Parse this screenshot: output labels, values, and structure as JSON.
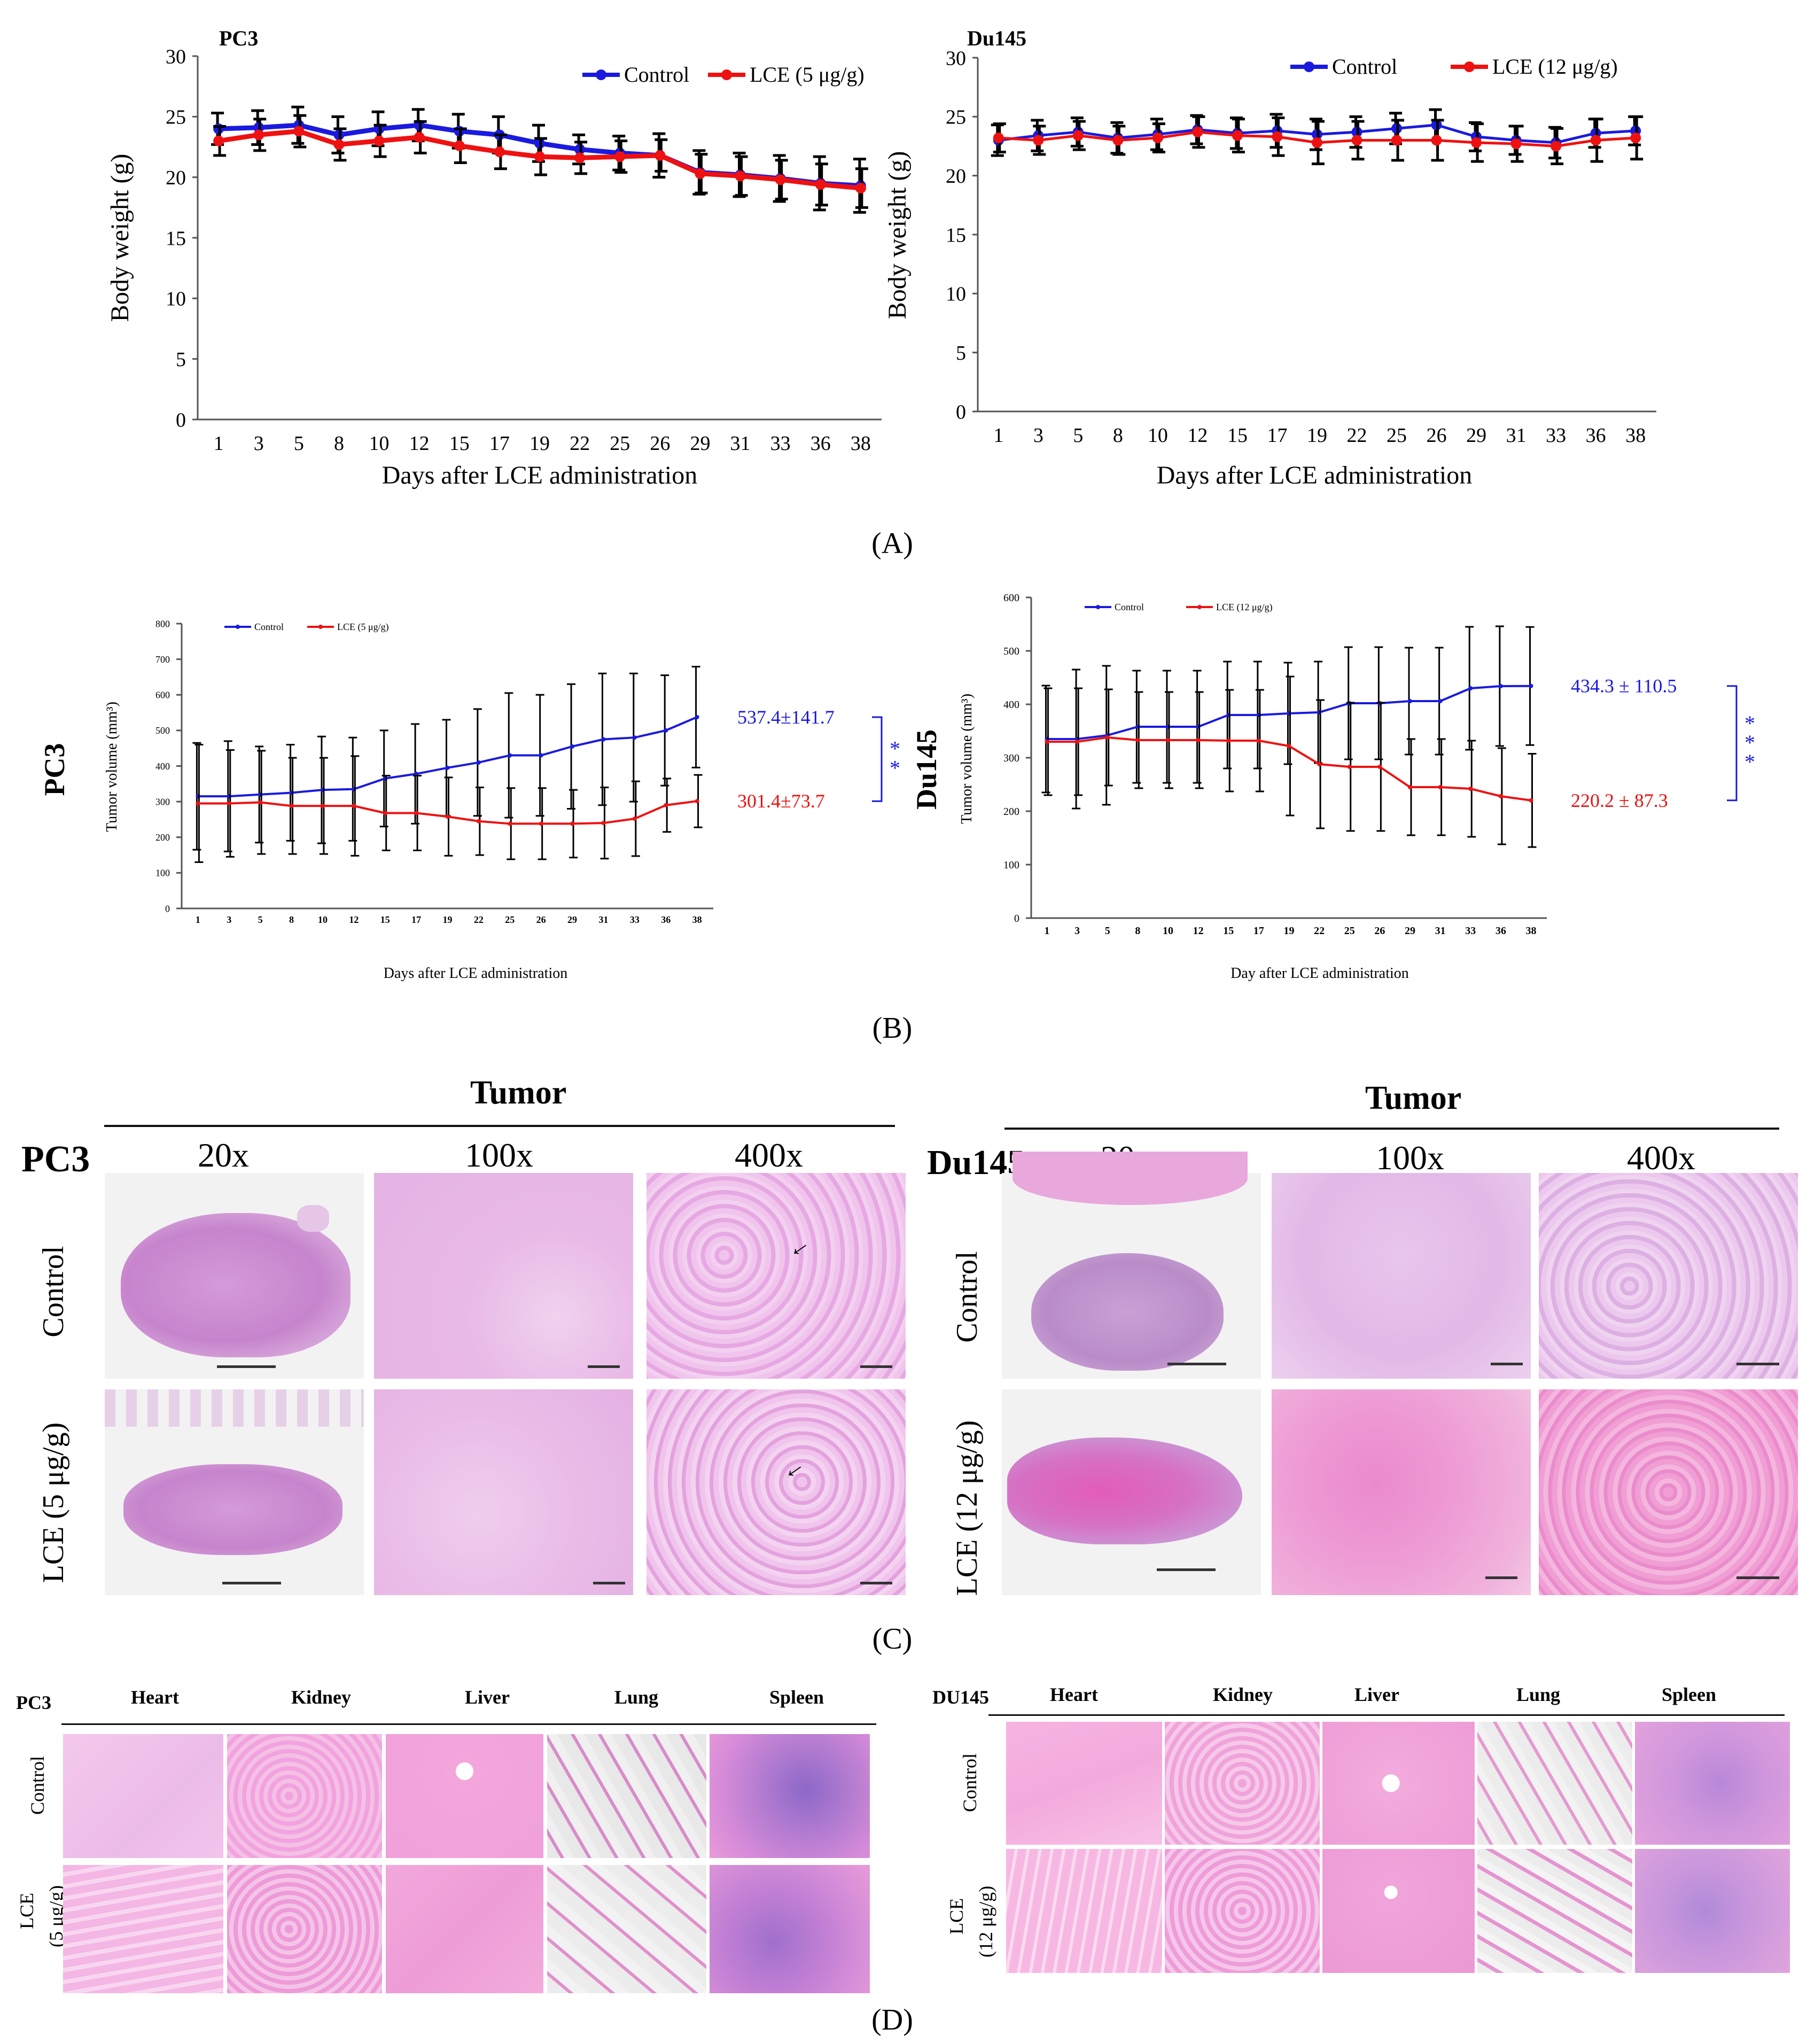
{
  "panel_labels": {
    "A": "(A)",
    "B": "(B)",
    "C": "(C)",
    "D": "(D)"
  },
  "colors": {
    "control": "#1a1adf",
    "lce": "#ee1111"
  },
  "chart_data": [
    {
      "id": "A-PC3",
      "type": "line",
      "title": "PC3",
      "xlabel": "Days after LCE administration",
      "ylabel": "Body weight (g)",
      "categories": [
        "1",
        "3",
        "5",
        "8",
        "10",
        "12",
        "15",
        "17",
        "19",
        "22",
        "25",
        "26",
        "29",
        "31",
        "33",
        "36",
        "38"
      ],
      "ylim": [
        0,
        30
      ],
      "yticks": [
        "0",
        "5",
        "10",
        "15",
        "20",
        "25",
        "30"
      ],
      "series": [
        {
          "name": "Control",
          "color": "#1a1adf",
          "values": [
            24.0,
            24.1,
            24.3,
            23.5,
            24.0,
            24.3,
            23.8,
            23.5,
            22.8,
            22.3,
            22.0,
            21.8,
            20.4,
            20.2,
            19.9,
            19.5,
            19.3
          ],
          "errors": [
            1.3,
            1.4,
            1.5,
            1.5,
            1.4,
            1.3,
            1.4,
            1.5,
            1.5,
            1.2,
            1.4,
            1.8,
            1.8,
            1.8,
            1.9,
            2.2,
            2.2
          ]
        },
        {
          "name": "LCE (5 μg/g)",
          "color": "#ee1111",
          "values": [
            23.0,
            23.5,
            23.8,
            22.7,
            23.0,
            23.3,
            22.6,
            22.1,
            21.7,
            21.6,
            21.7,
            21.8,
            20.3,
            20.1,
            19.8,
            19.4,
            19.1
          ],
          "errors": [
            1.2,
            1.3,
            1.3,
            1.3,
            1.3,
            1.3,
            1.4,
            1.4,
            1.5,
            1.3,
            1.3,
            1.3,
            1.6,
            1.6,
            1.6,
            1.7,
            1.6
          ]
        }
      ],
      "legend": [
        "Control",
        "LCE (5 μg/g)"
      ]
    },
    {
      "id": "A-Du145",
      "type": "line",
      "title": "Du145",
      "xlabel": "Days after LCE administration",
      "ylabel": "Body weight (g)",
      "categories": [
        "1",
        "3",
        "5",
        "8",
        "10",
        "12",
        "15",
        "17",
        "19",
        "22",
        "25",
        "26",
        "29",
        "31",
        "33",
        "36",
        "38"
      ],
      "ylim": [
        0,
        30
      ],
      "yticks": [
        "0",
        "5",
        "10",
        "15",
        "20",
        "25",
        "30"
      ],
      "series": [
        {
          "name": "Control",
          "color": "#1a1adf",
          "values": [
            23.0,
            23.4,
            23.7,
            23.2,
            23.5,
            23.9,
            23.6,
            23.8,
            23.5,
            23.7,
            24.0,
            24.3,
            23.3,
            23.0,
            22.8,
            23.6,
            23.8
          ],
          "errors": [
            1.3,
            1.3,
            1.2,
            1.3,
            1.3,
            1.2,
            1.3,
            1.4,
            1.3,
            1.3,
            1.3,
            1.3,
            1.2,
            1.2,
            1.3,
            1.2,
            1.2
          ]
        },
        {
          "name": "LCE (12 μg/g)",
          "color": "#ee1111",
          "values": [
            23.2,
            23.0,
            23.4,
            23.0,
            23.2,
            23.7,
            23.4,
            23.3,
            22.8,
            23.0,
            23.0,
            23.0,
            22.8,
            22.7,
            22.5,
            23.0,
            23.2
          ],
          "errors": [
            1.2,
            1.2,
            1.2,
            1.2,
            1.2,
            1.3,
            1.4,
            1.6,
            1.8,
            1.6,
            1.7,
            1.7,
            1.6,
            1.5,
            1.5,
            1.8,
            1.8
          ]
        }
      ],
      "legend": [
        "Control",
        "LCE (12 μg/g)"
      ]
    },
    {
      "id": "B-PC3",
      "type": "line",
      "title": "PC3",
      "xlabel": "Days after LCE administration",
      "ylabel": "Tumor volume (mm³)",
      "categories": [
        "1",
        "3",
        "5",
        "8",
        "10",
        "12",
        "15",
        "17",
        "19",
        "22",
        "25",
        "26",
        "29",
        "31",
        "33",
        "36",
        "38"
      ],
      "ylim": [
        0,
        800
      ],
      "yticks": [
        "0",
        "100",
        "200",
        "300",
        "400",
        "500",
        "600",
        "700",
        "800"
      ],
      "series": [
        {
          "name": "Control",
          "color": "#1a1adf",
          "values": [
            315,
            315,
            320,
            325,
            333,
            335,
            365,
            378,
            395,
            410,
            430,
            430,
            455,
            475,
            480,
            500,
            537.4
          ],
          "errors": [
            150,
            155,
            135,
            135,
            150,
            145,
            135,
            140,
            135,
            150,
            175,
            170,
            175,
            185,
            180,
            155,
            141.7
          ]
        },
        {
          "name": "LCE (5 μg/g)",
          "color": "#ee1111",
          "values": [
            295,
            295,
            298,
            288,
            288,
            288,
            268,
            268,
            258,
            245,
            238,
            238,
            238,
            240,
            252,
            290,
            301.4
          ],
          "errors": [
            165,
            150,
            145,
            135,
            135,
            140,
            105,
            105,
            110,
            95,
            100,
            100,
            95,
            100,
            105,
            75,
            73.7
          ]
        }
      ],
      "legend": [
        "Control",
        "LCE (5 μg/g)"
      ],
      "annotations": {
        "control": "537.4±141.7",
        "lce": "301.4±73.7",
        "sig": "* *"
      }
    },
    {
      "id": "B-Du145",
      "type": "line",
      "title": "Du145",
      "xlabel": "Day after LCE administration",
      "ylabel": "Tumor volume (mm³)",
      "categories": [
        "1",
        "3",
        "5",
        "8",
        "10",
        "12",
        "15",
        "17",
        "19",
        "22",
        "25",
        "26",
        "29",
        "31",
        "33",
        "36",
        "38"
      ],
      "ylim": [
        0,
        600
      ],
      "yticks": [
        "0",
        "100",
        "200",
        "300",
        "400",
        "500",
        "600"
      ],
      "series": [
        {
          "name": "Control",
          "color": "#1a1adf",
          "values": [
            335,
            335,
            342,
            358,
            358,
            358,
            380,
            380,
            383,
            385,
            402,
            402,
            406,
            406,
            430,
            434,
            434.3
          ],
          "errors": [
            100,
            130,
            130,
            105,
            105,
            105,
            100,
            100,
            95,
            95,
            105,
            105,
            100,
            100,
            115,
            112,
            110.5
          ]
        },
        {
          "name": "LCE (12 μg/g)",
          "color": "#ee1111",
          "values": [
            330,
            330,
            338,
            333,
            333,
            333,
            332,
            332,
            322,
            288,
            283,
            283,
            245,
            245,
            242,
            228,
            220.2
          ],
          "errors": [
            100,
            100,
            90,
            90,
            90,
            90,
            95,
            95,
            130,
            120,
            120,
            120,
            90,
            90,
            90,
            90,
            87.3
          ]
        }
      ],
      "legend": [
        "Control",
        "LCE (12 μg/g)"
      ],
      "annotations": {
        "control": "434.3  ± 110.5",
        "lce": "220.2  ± 87.3",
        "sig": "* * *"
      }
    }
  ],
  "panelC": {
    "tumor_header": "Tumor",
    "pc3_label": "PC3",
    "du145_label": "Du145",
    "mags": [
      "20x",
      "100x",
      "400x"
    ],
    "rows_pc3": [
      "Control",
      "LCE (5 μg/g)"
    ],
    "rows_du145": [
      "Control",
      "LCE (12 μg/g)"
    ]
  },
  "panelD": {
    "pc3_label": "PC3",
    "du145_label": "DU145",
    "organs": [
      "Heart",
      "Kidney",
      "Liver",
      "Lung",
      "Spleen"
    ],
    "rows_pc3": [
      "Control",
      "LCE",
      "(5 μg/g)"
    ],
    "rows_du145": [
      "Control",
      "LCE",
      "(12 μg/g)"
    ]
  }
}
